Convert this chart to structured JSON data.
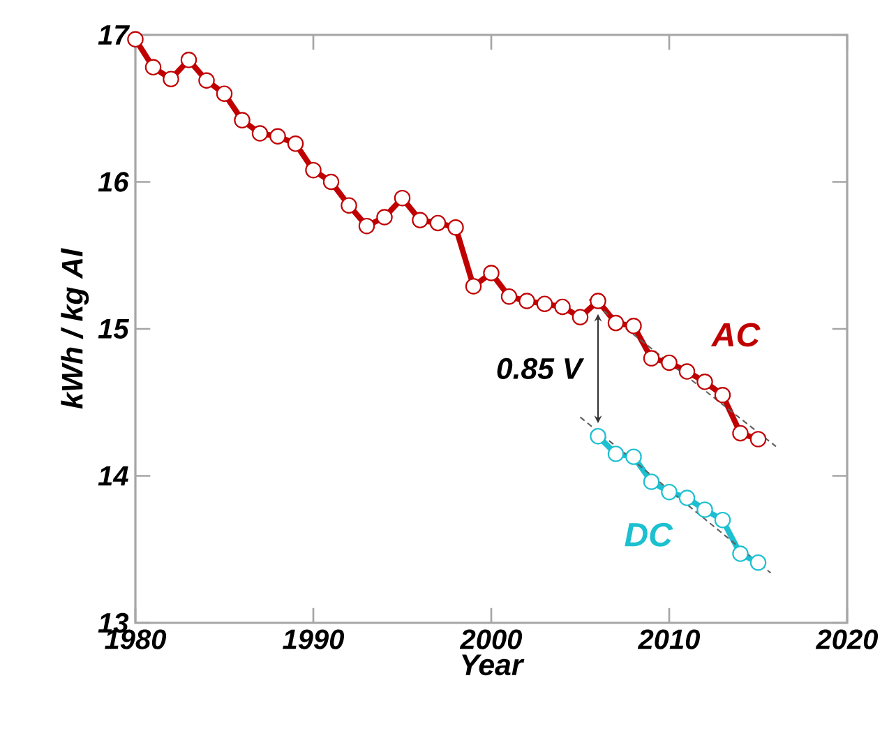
{
  "chart_data": {
    "type": "line",
    "xlabel": "Year",
    "ylabel": "kWh / kg Al",
    "xlim": [
      1980,
      2020
    ],
    "ylim": [
      13,
      17
    ],
    "xticks": [
      1980,
      1990,
      2000,
      2010,
      2020
    ],
    "yticks": [
      13,
      14,
      15,
      16,
      17
    ],
    "grid": false,
    "legend": false,
    "marker": "circle",
    "line_style": "solid",
    "x": [
      1980,
      1981,
      1982,
      1983,
      1984,
      1985,
      1986,
      1987,
      1988,
      1989,
      1990,
      1991,
      1992,
      1993,
      1994,
      1995,
      1996,
      1997,
      1998,
      1999,
      2000,
      2001,
      2002,
      2003,
      2004,
      2005,
      2006,
      2007,
      2008,
      2009,
      2010,
      2011,
      2012,
      2013,
      2014,
      2015
    ],
    "series": [
      {
        "name": "AC",
        "color": "#c00000",
        "values": [
          16.97,
          16.78,
          16.7,
          16.83,
          16.69,
          16.6,
          16.42,
          16.33,
          16.31,
          16.26,
          16.08,
          16.0,
          15.84,
          15.7,
          15.76,
          15.89,
          15.74,
          15.72,
          15.69,
          15.29,
          15.38,
          15.22,
          15.19,
          15.17,
          15.15,
          15.08,
          15.19,
          15.04,
          15.02,
          14.8,
          14.77,
          14.71,
          14.64,
          14.55,
          14.29,
          14.25
        ]
      },
      {
        "name": "DC",
        "color": "#1cc0d0",
        "x": [
          2006,
          2007,
          2008,
          2009,
          2010,
          2011,
          2012,
          2013,
          2014,
          2015
        ],
        "values": [
          14.27,
          14.15,
          14.13,
          13.96,
          13.89,
          13.85,
          13.77,
          13.7,
          13.47,
          13.41
        ]
      },
      {
        "type": "line",
        "color": "#606060",
        "marker": "none",
        "line_style": "dashed",
        "x": [
          2005.5,
          2016
        ],
        "values": [
          15.2,
          14.2
        ]
      },
      {
        "type": "line",
        "color": "#606060",
        "marker": "none",
        "line_style": "dashed",
        "x": [
          2005,
          2015.7
        ],
        "values": [
          14.4,
          13.34
        ]
      }
    ],
    "annotations": [
      "0.85 V"
    ]
  }
}
